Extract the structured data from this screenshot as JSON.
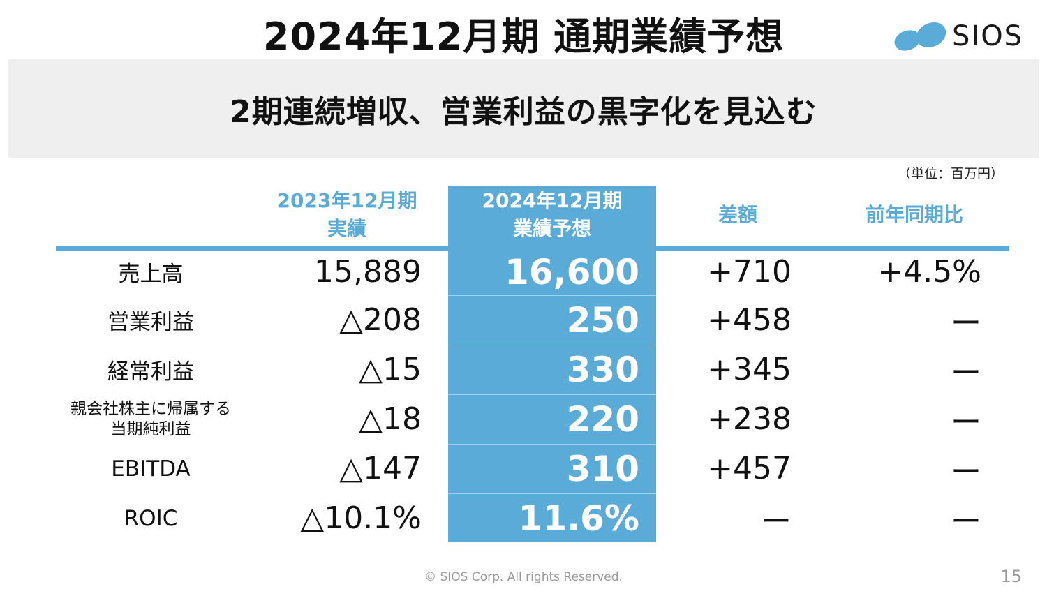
{
  "title": "2024年12月期 通期業績予想",
  "logo": {
    "text": "SIOS",
    "icon": "sios-droplets-logo",
    "color": "#5aabd8"
  },
  "banner": "2期連続増収、営業利益の黒字化を見込む",
  "unit": "（単位：百万円）",
  "accent_color": "#5aabd8",
  "table": {
    "headers": {
      "prev_line1": "2023年12月期",
      "prev_line2": "実績",
      "cur_line1": "2024年12月期",
      "cur_line2": "業績予想",
      "diff": "差額",
      "yoy": "前年同期比"
    },
    "rows": [
      {
        "label": "売上高",
        "prev": "15,889",
        "cur": "16,600",
        "diff": "+710",
        "yoy": "+4.5%"
      },
      {
        "label": "営業利益",
        "prev": "△208",
        "cur": "250",
        "diff": "+458",
        "yoy": "ー"
      },
      {
        "label": "経常利益",
        "prev": "△15",
        "cur": "330",
        "diff": "+345",
        "yoy": "ー"
      },
      {
        "label_line1": "親会社株主に帰属する",
        "label_line2": "当期純利益",
        "prev": "△18",
        "cur": "220",
        "diff": "+238",
        "yoy": "ー"
      },
      {
        "label": "EBITDA",
        "prev": "△147",
        "cur": "310",
        "diff": "+457",
        "yoy": "ー"
      },
      {
        "label": "ROIC",
        "prev": "△10.1%",
        "cur": "11.6%",
        "diff": "ー",
        "yoy": "ー"
      }
    ]
  },
  "footer": "© SIOS Corp. All rights Reserved.",
  "page_number": "15"
}
